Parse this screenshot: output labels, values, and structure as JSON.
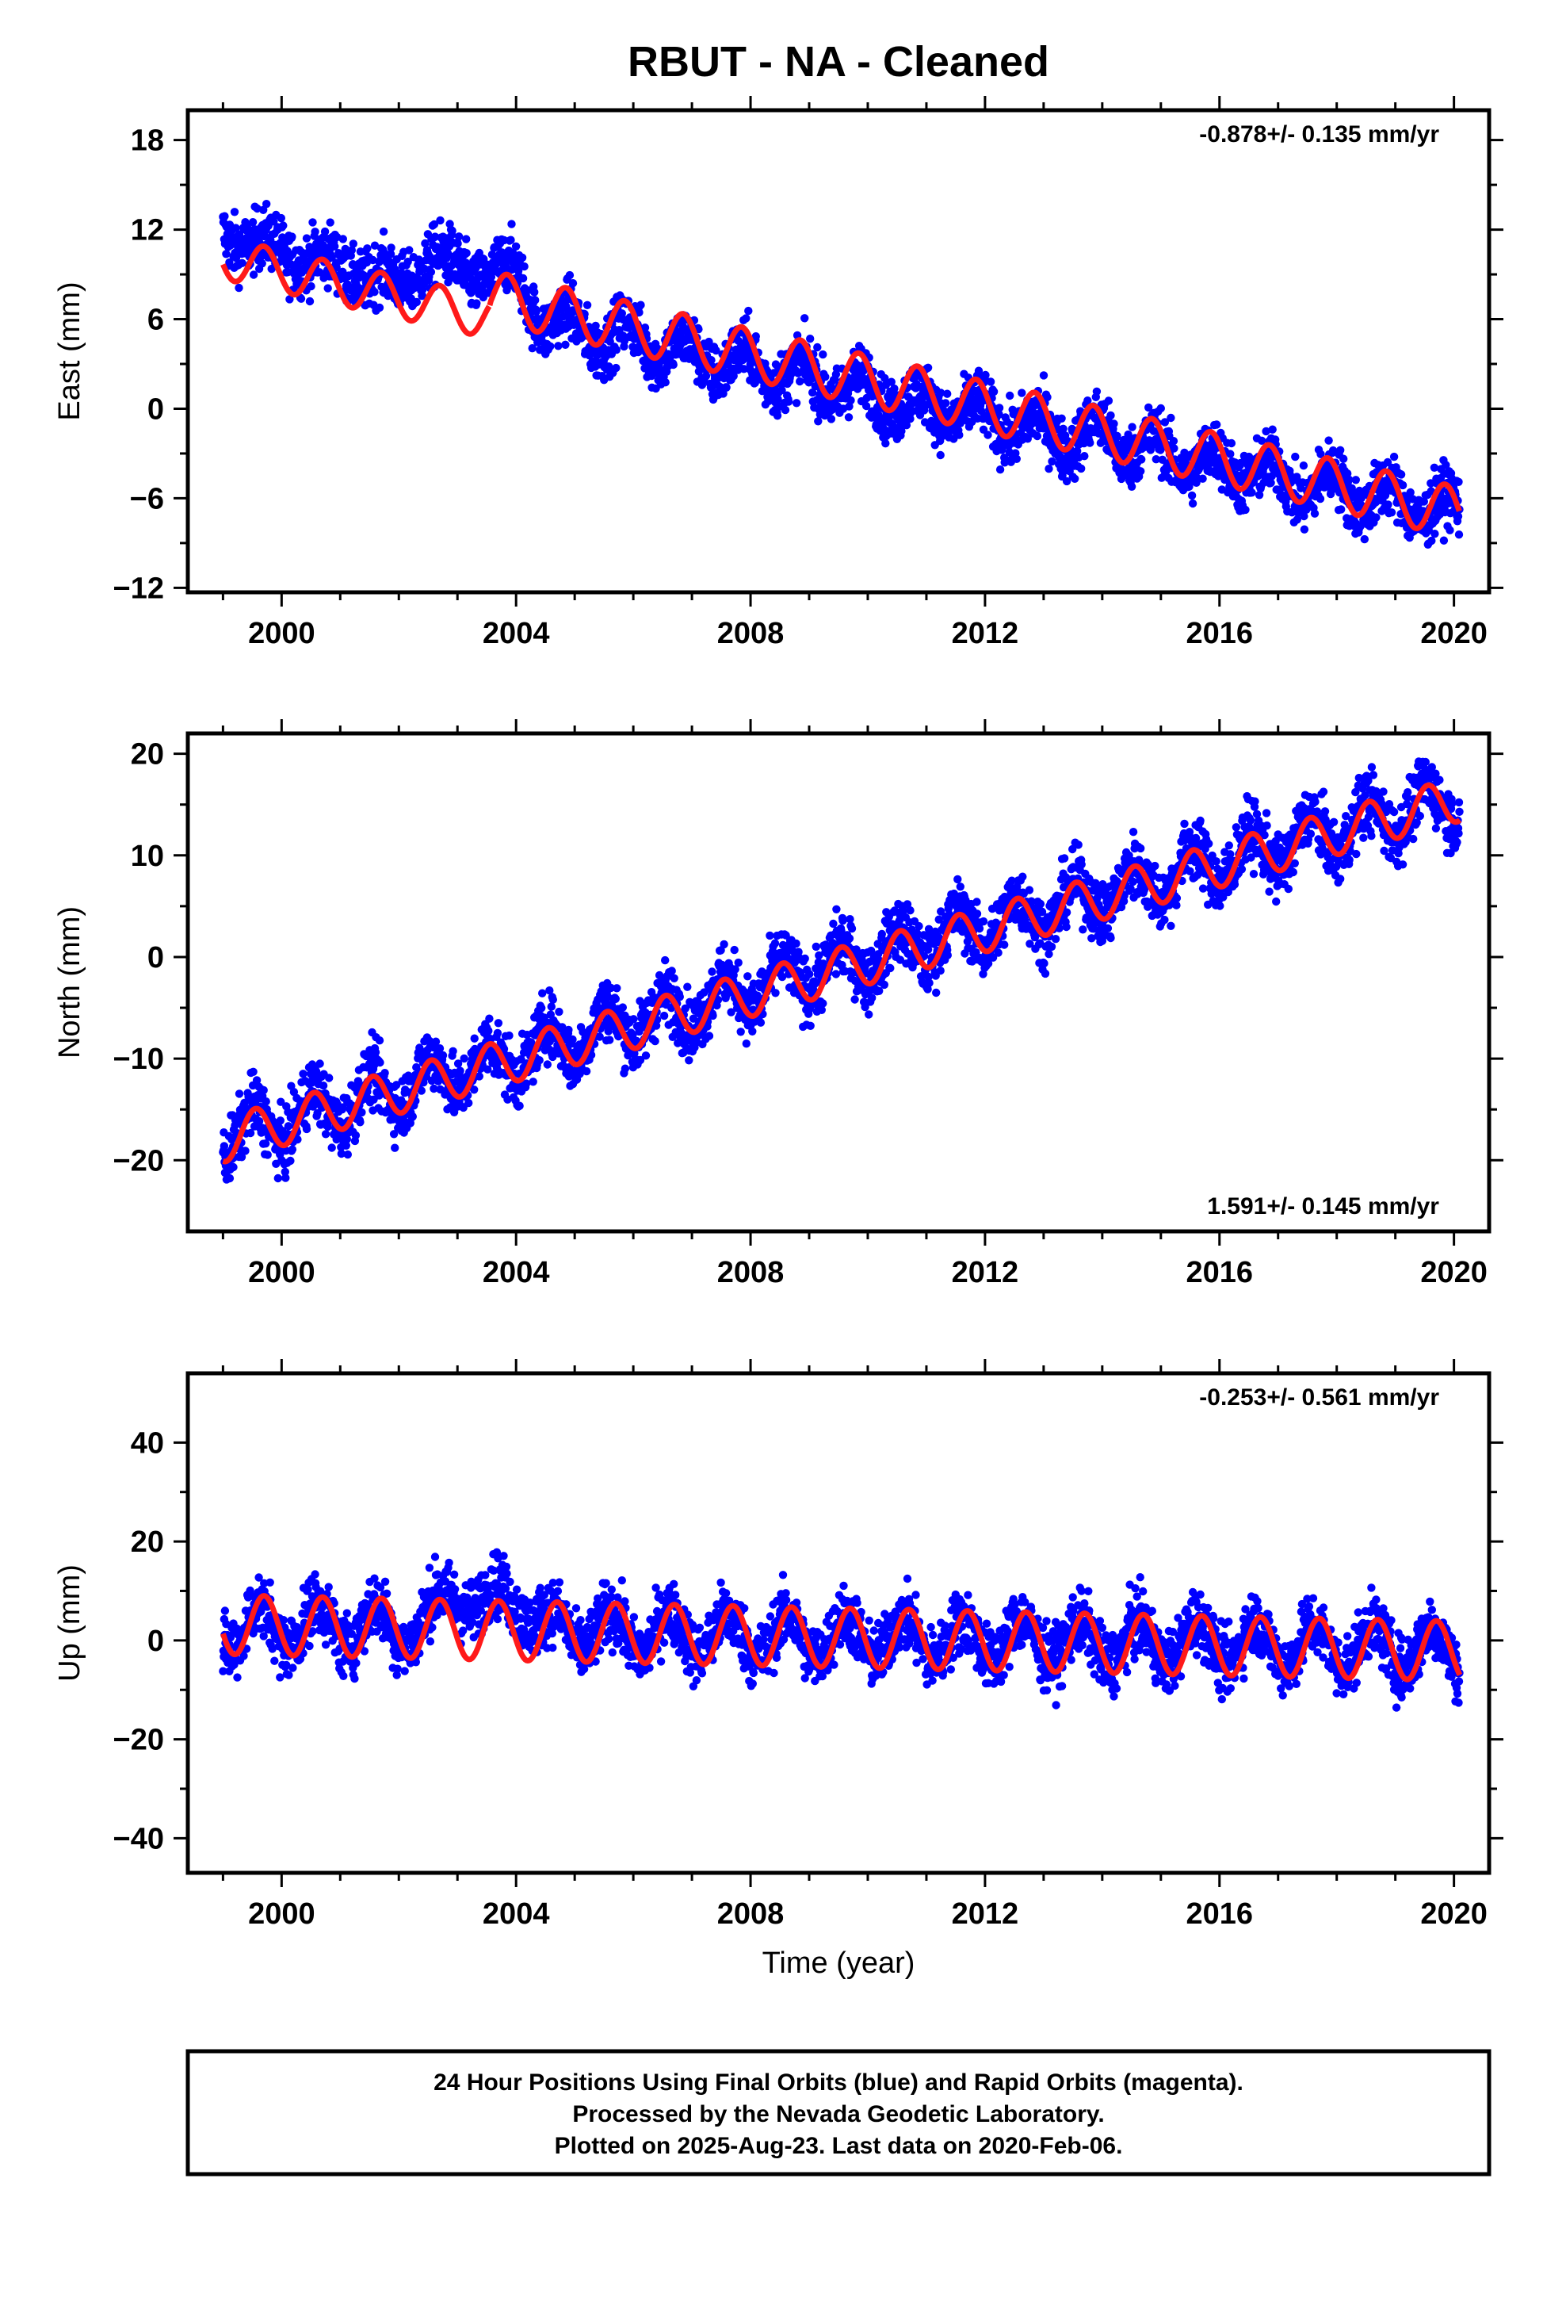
{
  "title": "RBUT  - NA - Cleaned",
  "xlabel": "Time (year)",
  "footer": [
    "24 Hour Positions Using Final Orbits (blue) and Rapid Orbits (magenta).",
    "Processed by the Nevada Geodetic Laboratory.",
    "Plotted on 2025-Aug-23. Last data on 2020-Feb-06."
  ],
  "colors": {
    "points": "#0000ff",
    "model": "#ff1a1a",
    "frame": "#000000"
  },
  "chart_data": [
    {
      "type": "scatter",
      "component": "east",
      "ylabel": "East (mm)",
      "rate_text": "-0.878+/- 0.135 mm/yr",
      "xlim": [
        1998.4,
        2020.6
      ],
      "ylim": [
        -12.3,
        20
      ],
      "xticks": [
        2000,
        2004,
        2008,
        2012,
        2016,
        2020
      ],
      "yticks": [
        -12,
        -6,
        0,
        6,
        12,
        18
      ],
      "model_segments": [
        {
          "start": 1999.0,
          "end": 2003.55,
          "intercept": 10.1,
          "slope": -0.878,
          "amplitude": 1.4,
          "peak_phase": 0.7
        },
        {
          "start": 2003.55,
          "end": 2020.1,
          "intercept": 11.55,
          "slope": -0.878,
          "amplitude": 1.7,
          "peak_phase": 0.85
        }
      ],
      "series": [
        {
          "x": [
            1999.0,
            1999.5,
            2000.0,
            2000.5,
            2001.0,
            2001.5,
            2002.0,
            2002.5,
            2003.0,
            2003.5,
            2004.0,
            2004.5,
            2005.0,
            2005.5,
            2006.0,
            2006.5,
            2007.0,
            2007.5,
            2008.0,
            2008.5,
            2009.0,
            2009.5,
            2010.0,
            2010.5,
            2011.0,
            2011.5,
            2012.0,
            2012.5,
            2013.0,
            2013.5,
            2014.0,
            2014.5,
            2015.0,
            2015.5,
            2016.0,
            2016.5,
            2017.0,
            2017.5,
            2018.0,
            2018.5,
            2019.0,
            2019.5,
            2020.0
          ],
          "values": [
            14.0,
            12.0,
            12.5,
            10.5,
            11.5,
            9.0,
            10.0,
            12.0,
            13.5,
            10.5,
            11.0,
            4.5,
            5.5,
            3.0,
            5.0,
            2.5,
            3.5,
            1.5,
            3.0,
            1.0,
            2.0,
            0.0,
            1.0,
            -1.0,
            0.0,
            -1.5,
            -0.5,
            -2.5,
            -1.5,
            -3.5,
            -1.0,
            -3.5,
            -2.5,
            -5.0,
            -3.5,
            -5.0,
            -4.5,
            -6.5,
            -4.5,
            -7.0,
            -5.5,
            -7.5,
            -6.0
          ]
        }
      ]
    },
    {
      "type": "scatter",
      "component": "north",
      "ylabel": "North (mm)",
      "rate_text": "1.591+/- 0.145 mm/yr",
      "xlim": [
        1998.4,
        2020.6
      ],
      "ylim": [
        -27,
        22
      ],
      "xticks": [
        2000,
        2004,
        2008,
        2012,
        2016,
        2020
      ],
      "yticks": [
        -20,
        -10,
        0,
        10,
        20
      ],
      "model_segments": [
        {
          "start": 1999.0,
          "end": 2020.1,
          "intercept": -18.0,
          "slope": 1.591,
          "amplitude": 2.2,
          "peak_phase": 0.55
        }
      ],
      "series": [
        {
          "x": [
            1999.0,
            1999.5,
            2000.0,
            2000.5,
            2001.0,
            2001.5,
            2002.0,
            2002.5,
            2003.0,
            2003.5,
            2004.0,
            2004.5,
            2005.0,
            2005.5,
            2006.0,
            2006.5,
            2007.0,
            2007.5,
            2008.0,
            2008.5,
            2009.0,
            2009.5,
            2010.0,
            2010.5,
            2011.0,
            2011.5,
            2012.0,
            2012.5,
            2013.0,
            2013.5,
            2014.0,
            2014.5,
            2015.0,
            2015.5,
            2016.0,
            2016.5,
            2017.0,
            2017.5,
            2018.0,
            2018.5,
            2019.0,
            2019.5,
            2020.0
          ],
          "values": [
            -20.0,
            -14.0,
            -19.0,
            -12.0,
            -17.0,
            -11.0,
            -15.0,
            -9.0,
            -13.0,
            -8.0,
            -12.0,
            -6.0,
            -10.0,
            -4.0,
            -8.0,
            -3.0,
            -7.0,
            -1.0,
            -5.0,
            0.5,
            -3.0,
            2.0,
            -2.0,
            3.5,
            -0.5,
            5.0,
            1.0,
            6.5,
            2.5,
            8.0,
            4.0,
            9.5,
            5.5,
            11.5,
            7.0,
            13.0,
            8.5,
            14.5,
            10.0,
            16.0,
            12.0,
            17.5,
            13.0
          ]
        }
      ]
    },
    {
      "type": "scatter",
      "component": "up",
      "ylabel": "Up (mm)",
      "rate_text": "-0.253+/- 0.561 mm/yr",
      "xlim": [
        1998.4,
        2020.6
      ],
      "ylim": [
        -47,
        54
      ],
      "xticks": [
        2000,
        2004,
        2008,
        2012,
        2016,
        2020
      ],
      "yticks": [
        -40,
        -20,
        0,
        20,
        40
      ],
      "model_segments": [
        {
          "start": 1999.0,
          "end": 2020.1,
          "intercept": 3.2,
          "slope": -0.253,
          "amplitude": 6.0,
          "peak_phase": 0.7
        }
      ],
      "series": [
        {
          "x": [
            1999.0,
            1999.5,
            2000.0,
            2000.5,
            2001.0,
            2001.5,
            2002.0,
            2002.5,
            2003.0,
            2003.5,
            2004.0,
            2004.5,
            2005.0,
            2005.5,
            2006.0,
            2006.5,
            2007.0,
            2007.5,
            2008.0,
            2008.5,
            2009.0,
            2009.5,
            2010.0,
            2010.5,
            2011.0,
            2011.5,
            2012.0,
            2012.5,
            2013.0,
            2013.5,
            2014.0,
            2014.5,
            2015.0,
            2015.5,
            2016.0,
            2016.5,
            2017.0,
            2017.5,
            2018.0,
            2018.5,
            2019.0,
            2019.5,
            2020.0
          ],
          "values": [
            -5.0,
            8.0,
            -3.0,
            9.0,
            -2.0,
            9.0,
            -3.0,
            10.0,
            14.0,
            16.0,
            12.0,
            8.0,
            -2.0,
            7.0,
            -4.0,
            7.0,
            -4.0,
            7.0,
            -5.0,
            6.0,
            -5.0,
            6.0,
            -4.0,
            6.0,
            -5.0,
            5.0,
            -5.0,
            6.0,
            -5.0,
            5.0,
            -6.0,
            5.0,
            -6.0,
            7.0,
            -6.0,
            6.0,
            -6.0,
            5.0,
            -7.0,
            5.0,
            -7.0,
            4.0,
            -6.0
          ]
        }
      ]
    }
  ]
}
